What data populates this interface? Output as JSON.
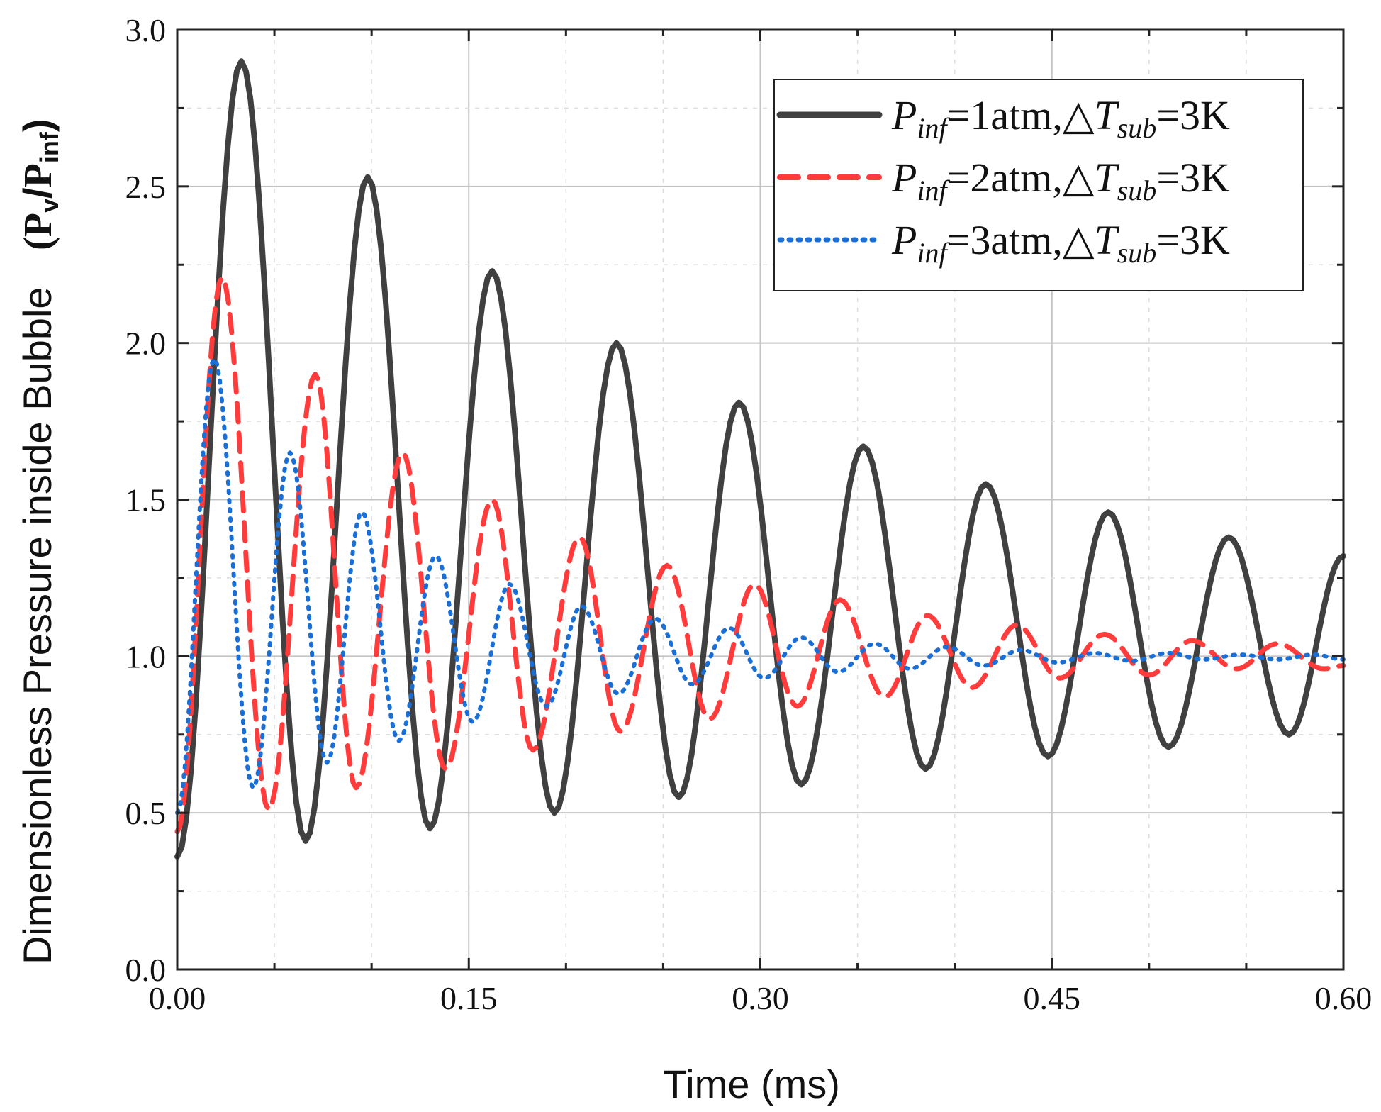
{
  "chart_data": {
    "type": "line",
    "title": "",
    "xlabel": "Time (ms)",
    "ylabel_main": "Dimensionless Pressure inside Bubble",
    "ylabel_paren": {
      "open": "(",
      "p1": "P",
      "s1": "v",
      "slash": "/",
      "p2": "P",
      "s2": "inf",
      "close": ")"
    },
    "xlim": [
      0,
      0.6
    ],
    "ylim": [
      0,
      3.0
    ],
    "x_ticks": [
      "0.00",
      "0.15",
      "0.30",
      "0.45",
      "0.60"
    ],
    "y_ticks": [
      "0.0",
      "0.5",
      "1.0",
      "1.5",
      "2.0",
      "2.5",
      "3.0"
    ],
    "grid": true,
    "legend_position": "top-right",
    "series": [
      {
        "name": "Pinf=1atm,ΔTsub=3K",
        "legend": {
          "P": "P",
          "inf": "inf",
          "eq": "=1atm,△",
          "T": "T",
          "sub": "sub",
          "tail": "=3K"
        },
        "color": "#404040",
        "style": "solid",
        "initial": 0.36,
        "peaks": [
          [
            0.033,
            2.9
          ],
          [
            0.098,
            2.53
          ],
          [
            0.162,
            2.23
          ],
          [
            0.226,
            2.0
          ],
          [
            0.289,
            1.81
          ],
          [
            0.353,
            1.67
          ],
          [
            0.416,
            1.55
          ],
          [
            0.479,
            1.46
          ],
          [
            0.541,
            1.38
          ]
        ],
        "troughs": [
          [
            0.066,
            0.41
          ],
          [
            0.13,
            0.45
          ],
          [
            0.194,
            0.5
          ],
          [
            0.258,
            0.55
          ],
          [
            0.321,
            0.59
          ],
          [
            0.385,
            0.64
          ],
          [
            0.448,
            0.68
          ],
          [
            0.51,
            0.71
          ],
          [
            0.572,
            0.75
          ]
        ],
        "end": [
          0.6,
          1.32
        ]
      },
      {
        "name": "Pinf=2atm,ΔTsub=3K",
        "legend": {
          "P": "P",
          "inf": "inf",
          "eq": "=2atm,△",
          "T": "T",
          "sub": "sub",
          "tail": "=3K"
        },
        "color": "#ff3b3b",
        "style": "dashed",
        "initial": 0.44,
        "peaks": [
          [
            0.023,
            2.21
          ],
          [
            0.071,
            1.9
          ],
          [
            0.116,
            1.65
          ],
          [
            0.162,
            1.5
          ],
          [
            0.207,
            1.38
          ],
          [
            0.252,
            1.29
          ],
          [
            0.297,
            1.23
          ],
          [
            0.341,
            1.18
          ],
          [
            0.386,
            1.13
          ],
          [
            0.432,
            1.1
          ],
          [
            0.477,
            1.07
          ],
          [
            0.522,
            1.05
          ],
          [
            0.566,
            1.04
          ]
        ],
        "troughs": [
          [
            0.047,
            0.51
          ],
          [
            0.092,
            0.58
          ],
          [
            0.138,
            0.64
          ],
          [
            0.183,
            0.7
          ],
          [
            0.228,
            0.76
          ],
          [
            0.274,
            0.8
          ],
          [
            0.319,
            0.84
          ],
          [
            0.364,
            0.87
          ],
          [
            0.409,
            0.9
          ],
          [
            0.454,
            0.93
          ],
          [
            0.5,
            0.94
          ],
          [
            0.545,
            0.96
          ],
          [
            0.59,
            0.96
          ]
        ],
        "end": [
          0.6,
          0.97
        ]
      },
      {
        "name": "Pinf=3atm,ΔTsub=3K",
        "legend": {
          "P": "P",
          "inf": "inf",
          "eq": "=3atm,△",
          "T": "T",
          "sub": "sub",
          "tail": "=3K"
        },
        "color": "#1a6fd6",
        "style": "dotted",
        "initial": 0.5,
        "peaks": [
          [
            0.019,
            1.95
          ],
          [
            0.058,
            1.65
          ],
          [
            0.095,
            1.46
          ],
          [
            0.133,
            1.32
          ],
          [
            0.171,
            1.23
          ],
          [
            0.208,
            1.16
          ],
          [
            0.246,
            1.12
          ],
          [
            0.284,
            1.09
          ],
          [
            0.321,
            1.06
          ],
          [
            0.359,
            1.04
          ],
          [
            0.396,
            1.03
          ],
          [
            0.434,
            1.02
          ],
          [
            0.472,
            1.01
          ],
          [
            0.51,
            1.01
          ],
          [
            0.547,
            1.005
          ],
          [
            0.585,
            1.005
          ]
        ],
        "troughs": [
          [
            0.039,
            0.58
          ],
          [
            0.077,
            0.66
          ],
          [
            0.114,
            0.73
          ],
          [
            0.152,
            0.79
          ],
          [
            0.19,
            0.84
          ],
          [
            0.227,
            0.88
          ],
          [
            0.265,
            0.91
          ],
          [
            0.302,
            0.93
          ],
          [
            0.34,
            0.95
          ],
          [
            0.377,
            0.96
          ],
          [
            0.415,
            0.97
          ],
          [
            0.453,
            0.98
          ],
          [
            0.491,
            0.985
          ],
          [
            0.528,
            0.99
          ],
          [
            0.566,
            0.99
          ]
        ],
        "end": [
          0.6,
          0.99
        ]
      }
    ]
  }
}
